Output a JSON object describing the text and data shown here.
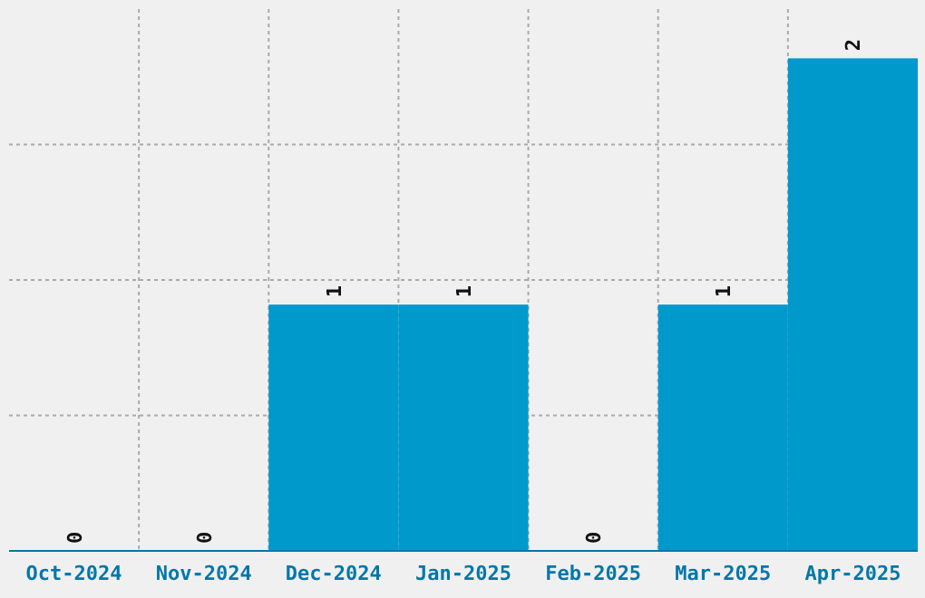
{
  "chart_data": {
    "type": "bar",
    "categories": [
      "Oct-2024",
      "Nov-2024",
      "Dec-2024",
      "Jan-2025",
      "Feb-2025",
      "Mar-2025",
      "Apr-2025"
    ],
    "values": [
      0,
      0,
      1,
      1,
      0,
      1,
      2
    ],
    "color": "#0099cc",
    "data_labels": true,
    "grid": true
  }
}
